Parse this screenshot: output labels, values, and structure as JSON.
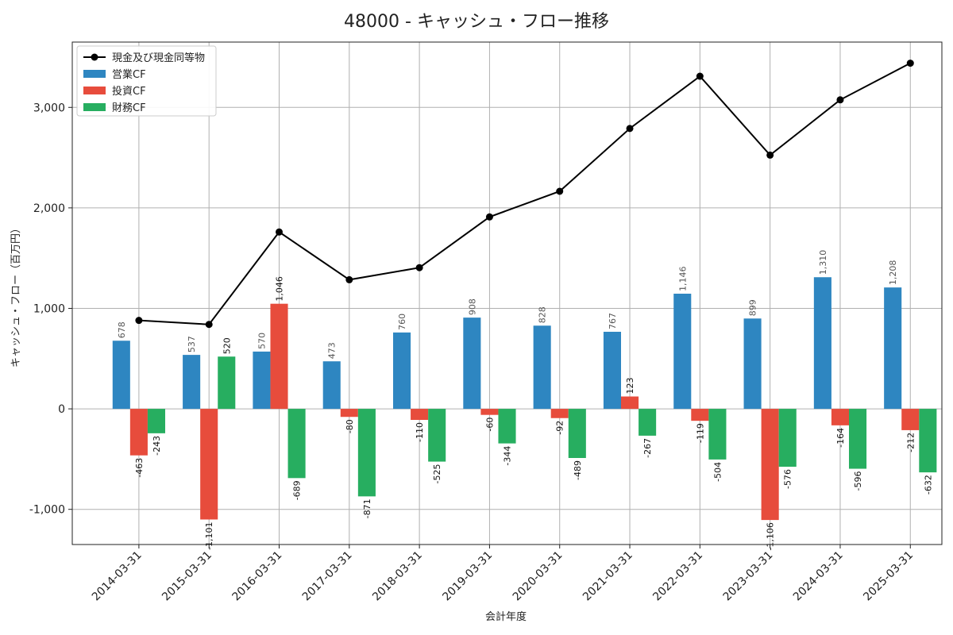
{
  "chart_data": {
    "type": "bar",
    "title": "48000 - キャッシュ・フロー推移",
    "xlabel": "会計年度",
    "ylabel": "キャッシュ・フロー（百万円）",
    "ylim": [
      -1350,
      3650
    ],
    "yticks": [
      -1000,
      0,
      1000,
      2000,
      3000
    ],
    "ytick_labels": [
      "-1,000",
      "0",
      "1,000",
      "2,000",
      "3,000"
    ],
    "grid": true,
    "legend_position": "top-left",
    "categories": [
      "2014-03-31",
      "2015-03-31",
      "2016-03-31",
      "2017-03-31",
      "2018-03-31",
      "2019-03-31",
      "2020-03-31",
      "2021-03-31",
      "2022-03-31",
      "2023-03-31",
      "2024-03-31",
      "2025-03-31"
    ],
    "series": [
      {
        "name": "営業CF",
        "kind": "bar",
        "color": "#2E86C1",
        "values": [
          678,
          537,
          570,
          473,
          760,
          908,
          828,
          767,
          1146,
          899,
          1310,
          1208
        ],
        "labels": [
          "678",
          "537",
          "570",
          "473",
          "760",
          "908",
          "828",
          "767",
          "1,146",
          "899",
          "1,310",
          "1,208"
        ]
      },
      {
        "name": "投資CF",
        "kind": "bar",
        "color": "#E74C3C",
        "values": [
          -463,
          -1101,
          1046,
          -80,
          -110,
          -60,
          -92,
          123,
          -119,
          -1106,
          -164,
          -212
        ],
        "labels": [
          "-463",
          "-1,101",
          "1,046",
          "-80",
          "-110",
          "-60",
          "-92",
          "123",
          "-119",
          "-1,106",
          "-164",
          "-212"
        ]
      },
      {
        "name": "財務CF",
        "kind": "bar",
        "color": "#27AE60",
        "values": [
          -243,
          520,
          -689,
          -871,
          -525,
          -344,
          -489,
          -267,
          -504,
          -576,
          -596,
          -632
        ],
        "labels": [
          "-243",
          "520",
          "-689",
          "-871",
          "-525",
          "-344",
          "-489",
          "-267",
          "-504",
          "-576",
          "-596",
          "-632"
        ]
      },
      {
        "name": "現金及び現金同等物",
        "kind": "line",
        "color": "#000000",
        "values": [
          880,
          840,
          1760,
          1285,
          1405,
          1910,
          2165,
          2790,
          3310,
          2525,
          3075,
          3440
        ]
      }
    ]
  }
}
